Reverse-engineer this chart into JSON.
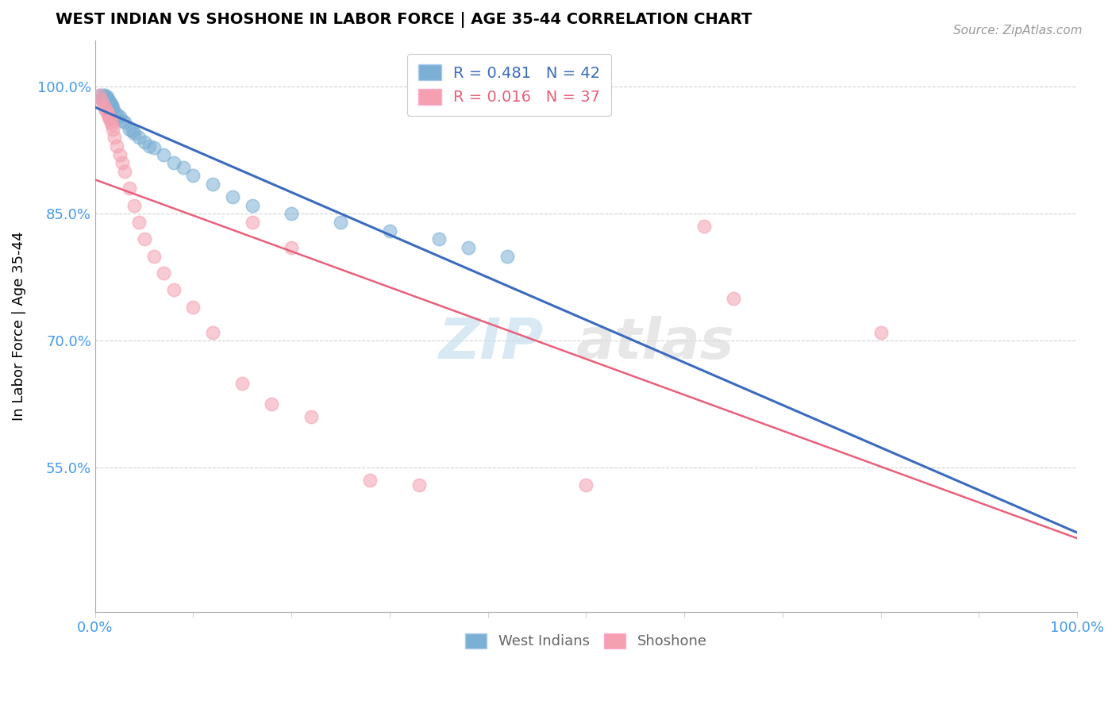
{
  "title": "WEST INDIAN VS SHOSHONE IN LABOR FORCE | AGE 35-44 CORRELATION CHART",
  "source": "Source: ZipAtlas.com",
  "ylabel": "In Labor Force | Age 35-44",
  "R1": 0.481,
  "N1": 42,
  "R2": 0.016,
  "N2": 37,
  "yticks": [
    0.55,
    0.7,
    0.85,
    1.0
  ],
  "ytick_labels": [
    "55.0%",
    "70.0%",
    "85.0%",
    "100.0%"
  ],
  "xlim": [
    0.0,
    1.0
  ],
  "ylim": [
    0.38,
    1.055
  ],
  "blue_scatter_color": "#7BAFD4",
  "blue_scatter_edge": "#7BAFD4",
  "pink_scatter_color": "#F4A0B0",
  "pink_scatter_edge": "#F4A0B0",
  "blue_line_color": "#3A6BBF",
  "pink_line_color": "#E8607A",
  "background_color": "#FFFFFF",
  "watermark_color": "#C8E0F0",
  "legend_label1": "West Indians",
  "legend_label2": "Shoshone",
  "wi_x": [
    0.005,
    0.007,
    0.008,
    0.009,
    0.01,
    0.01,
    0.011,
    0.012,
    0.012,
    0.013,
    0.013,
    0.014,
    0.015,
    0.015,
    0.016,
    0.017,
    0.018,
    0.02,
    0.022,
    0.025,
    0.028,
    0.03,
    0.035,
    0.038,
    0.04,
    0.045,
    0.05,
    0.055,
    0.06,
    0.07,
    0.08,
    0.09,
    0.1,
    0.12,
    0.14,
    0.16,
    0.2,
    0.25,
    0.3,
    0.35,
    0.38,
    0.42
  ],
  "wi_y": [
    0.99,
    0.985,
    0.99,
    0.985,
    0.99,
    0.988,
    0.987,
    0.985,
    0.988,
    0.985,
    0.982,
    0.984,
    0.98,
    0.983,
    0.98,
    0.978,
    0.975,
    0.97,
    0.968,
    0.965,
    0.96,
    0.958,
    0.95,
    0.948,
    0.945,
    0.94,
    0.935,
    0.93,
    0.928,
    0.92,
    0.91,
    0.905,
    0.895,
    0.885,
    0.87,
    0.86,
    0.85,
    0.84,
    0.83,
    0.82,
    0.81,
    0.8
  ],
  "sh_x": [
    0.004,
    0.006,
    0.008,
    0.01,
    0.011,
    0.012,
    0.013,
    0.014,
    0.015,
    0.016,
    0.017,
    0.018,
    0.02,
    0.022,
    0.025,
    0.028,
    0.03,
    0.035,
    0.04,
    0.045,
    0.05,
    0.06,
    0.07,
    0.08,
    0.1,
    0.12,
    0.15,
    0.18,
    0.22,
    0.28,
    0.33,
    0.5,
    0.62,
    0.65,
    0.8,
    0.16,
    0.2
  ],
  "sh_y": [
    0.99,
    0.985,
    0.98,
    0.975,
    0.972,
    0.97,
    0.968,
    0.965,
    0.962,
    0.958,
    0.955,
    0.95,
    0.94,
    0.93,
    0.92,
    0.91,
    0.9,
    0.88,
    0.86,
    0.84,
    0.82,
    0.8,
    0.78,
    0.76,
    0.74,
    0.71,
    0.65,
    0.625,
    0.61,
    0.535,
    0.53,
    0.53,
    0.835,
    0.75,
    0.71,
    0.84,
    0.81
  ]
}
